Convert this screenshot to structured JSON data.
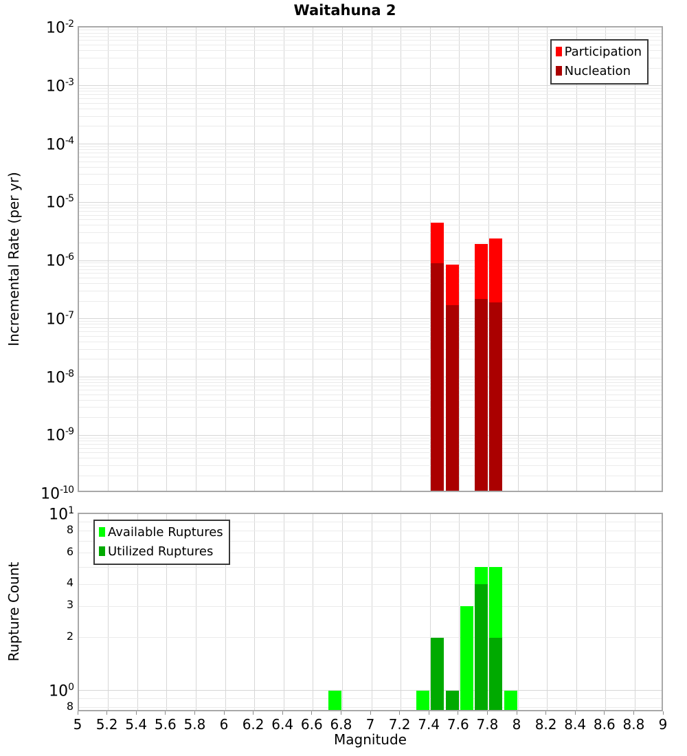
{
  "title": "Waitahuna 2",
  "x_axis": {
    "label": "Magnitude",
    "ticks": [
      {
        "value": 5,
        "label": "5"
      },
      {
        "value": 5.2,
        "label": "5.2"
      },
      {
        "value": 5.4,
        "label": "5.4"
      },
      {
        "value": 5.6,
        "label": "5.6"
      },
      {
        "value": 5.8,
        "label": "5.8"
      },
      {
        "value": 6,
        "label": "6"
      },
      {
        "value": 6.2,
        "label": "6.2"
      },
      {
        "value": 6.4,
        "label": "6.4"
      },
      {
        "value": 6.6,
        "label": "6.6"
      },
      {
        "value": 6.8,
        "label": "6.8"
      },
      {
        "value": 7,
        "label": "7"
      },
      {
        "value": 7.2,
        "label": "7.2"
      },
      {
        "value": 7.4,
        "label": "7.4"
      },
      {
        "value": 7.6,
        "label": "7.6"
      },
      {
        "value": 7.8,
        "label": "7.8"
      },
      {
        "value": 8,
        "label": "8"
      },
      {
        "value": 8.2,
        "label": "8.2"
      },
      {
        "value": 8.4,
        "label": "8.4"
      },
      {
        "value": 8.6,
        "label": "8.6"
      },
      {
        "value": 8.8,
        "label": "8.8"
      },
      {
        "value": 9,
        "label": "9"
      }
    ]
  },
  "chart_data": [
    {
      "id": "rate",
      "type": "bar",
      "yscale": "log",
      "xlim": [
        5,
        9
      ],
      "ylim": [
        1e-10,
        0.01
      ],
      "bin_width": 0.1,
      "ylabel": "Incremental Rate (per yr)",
      "legend_position": "top-right",
      "grid": true,
      "y_ticks": [
        {
          "value": 0.01,
          "base": "10",
          "sup": "-2"
        },
        {
          "value": 0.001,
          "base": "10",
          "sup": "-3"
        },
        {
          "value": 0.0001,
          "base": "10",
          "sup": "-4"
        },
        {
          "value": 1e-05,
          "base": "10",
          "sup": "-5"
        },
        {
          "value": 1e-06,
          "base": "10",
          "sup": "-6"
        },
        {
          "value": 1e-07,
          "base": "10",
          "sup": "-7"
        },
        {
          "value": 1e-08,
          "base": "10",
          "sup": "-8"
        },
        {
          "value": 1e-09,
          "base": "10",
          "sup": "-9"
        },
        {
          "value": 1e-10,
          "base": "10",
          "sup": "-10"
        }
      ],
      "series": [
        {
          "name": "Participation",
          "color": "#ff0000",
          "data": [
            [
              7.45,
              4.5e-06
            ],
            [
              7.55,
              8.5e-07
            ],
            [
              7.75,
              1.9e-06
            ],
            [
              7.85,
              2.4e-06
            ]
          ]
        },
        {
          "name": "Nucleation",
          "color": "#aa0000",
          "data": [
            [
              7.45,
              9e-07
            ],
            [
              7.55,
              1.7e-07
            ],
            [
              7.75,
              2.2e-07
            ],
            [
              7.85,
              1.9e-07
            ]
          ]
        }
      ]
    },
    {
      "id": "count",
      "type": "bar",
      "yscale": "log",
      "xlim": [
        5,
        9
      ],
      "ylim": [
        0.75,
        10
      ],
      "bin_width": 0.1,
      "ylabel": "Rupture Count",
      "legend_position": "top-left",
      "grid": true,
      "y_ticks": [
        {
          "value": 10,
          "base": "10",
          "sup": "1"
        },
        {
          "value": 8,
          "base": "8"
        },
        {
          "value": 6,
          "base": "6"
        },
        {
          "value": 4,
          "base": "4"
        },
        {
          "value": 3,
          "base": "3"
        },
        {
          "value": 2,
          "base": "2"
        },
        {
          "value": 1,
          "base": "10",
          "sup": "0"
        },
        {
          "value": 0.8,
          "base": "8"
        }
      ],
      "series": [
        {
          "name": "Available Ruptures",
          "color": "#00ff00",
          "data": [
            [
              6.75,
              1
            ],
            [
              7.35,
              1
            ],
            [
              7.45,
              2
            ],
            [
              7.55,
              1
            ],
            [
              7.65,
              3
            ],
            [
              7.75,
              5
            ],
            [
              7.85,
              5
            ],
            [
              7.95,
              1
            ]
          ]
        },
        {
          "name": "Utilized Ruptures",
          "color": "#00aa00",
          "data": [
            [
              7.45,
              2
            ],
            [
              7.55,
              1
            ],
            [
              7.75,
              4
            ],
            [
              7.85,
              2
            ]
          ]
        }
      ]
    }
  ]
}
